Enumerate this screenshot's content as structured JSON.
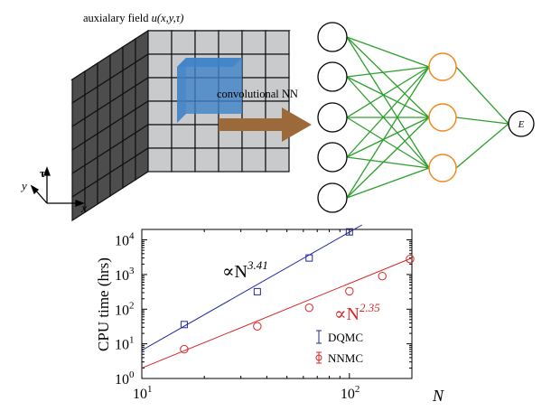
{
  "cube": {
    "label_prefix": "auxialary field ",
    "label_func": "u(x,y,τ)",
    "axis_tau": "τ",
    "axis_y": "y",
    "axis_x": "x",
    "face_color": "#c8cacc",
    "side_color": "#4d4d4d",
    "highlight_color": "#3f82c7"
  },
  "arrow": {
    "label": "convolutional NN",
    "color": "#9c6a3a"
  },
  "network": {
    "output_label": "E",
    "edge_color": "#2ca02c",
    "hidden_color": "#f08a1c"
  },
  "chart_data": {
    "type": "scatter",
    "xscale": "log",
    "yscale": "log",
    "xlim": [
      10,
      200
    ],
    "ylim": [
      1,
      20000
    ],
    "xlabel": "N",
    "ylabel": "CPU time (hrs)",
    "xticks": [
      {
        "value": 10,
        "base": "10",
        "exp": "1"
      },
      {
        "value": 100,
        "base": "10",
        "exp": "2"
      }
    ],
    "yticks": [
      {
        "value": 1,
        "base": "10",
        "exp": "0"
      },
      {
        "value": 10,
        "base": "10",
        "exp": "1"
      },
      {
        "value": 100,
        "base": "10",
        "exp": "2"
      },
      {
        "value": 1000,
        "base": "10",
        "exp": "3"
      },
      {
        "value": 10000,
        "base": "10",
        "exp": "4"
      }
    ],
    "series": [
      {
        "name": "DQMC",
        "marker": "square",
        "color": "#1f2a9c",
        "x": [
          16,
          36,
          64,
          100
        ],
        "y": [
          36,
          320,
          3000,
          17000
        ],
        "fit": {
          "x0": 10,
          "y0": 6.5,
          "x1": 115,
          "y1": 27000
        },
        "annotation": {
          "prefix": "∝N",
          "exp": "3.41"
        }
      },
      {
        "name": "NNMC",
        "marker": "circle",
        "color": "#d62728",
        "x": [
          16,
          36,
          64,
          100,
          144,
          196
        ],
        "y": [
          7,
          32,
          110,
          330,
          900,
          2800
        ],
        "fit": {
          "x0": 10,
          "y0": 2.0,
          "x1": 200,
          "y1": 3000
        },
        "annotation": {
          "prefix": "∝N",
          "exp": "2.35"
        }
      }
    ]
  }
}
